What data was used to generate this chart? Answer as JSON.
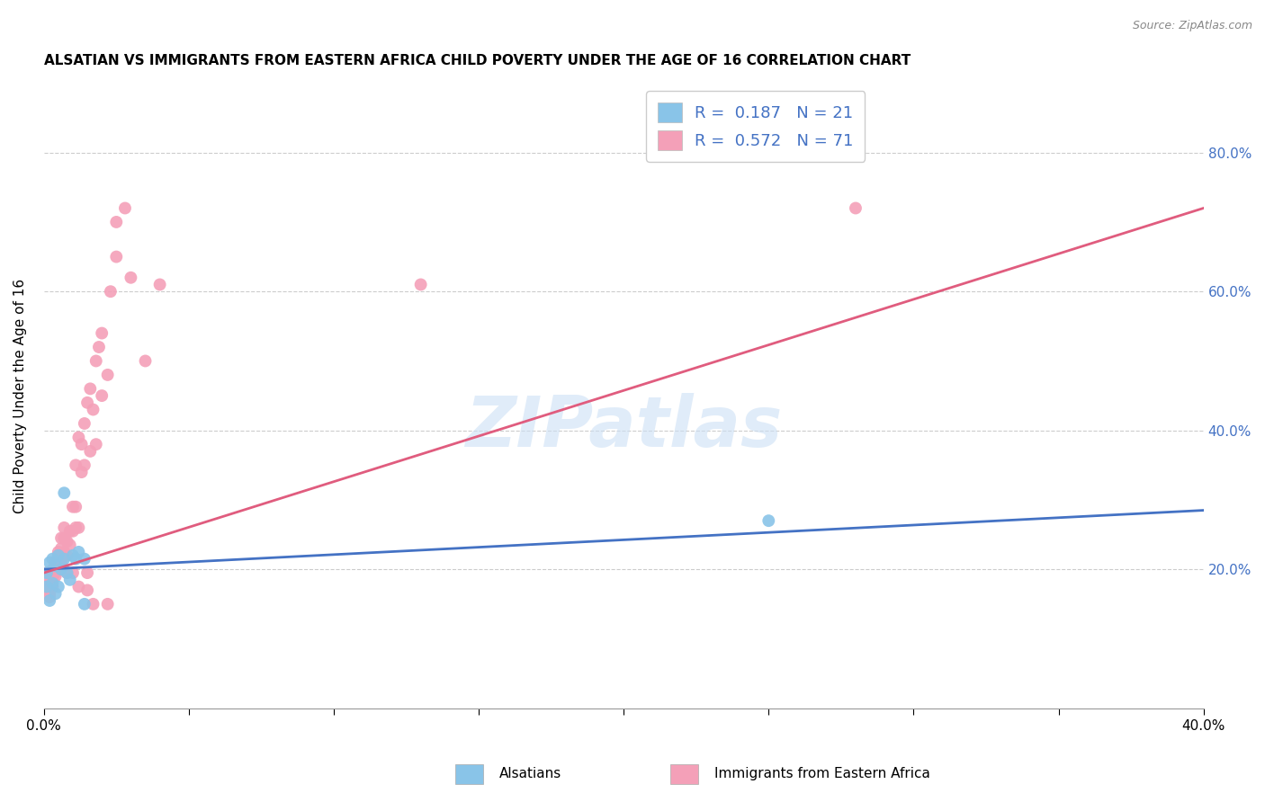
{
  "title": "ALSATIAN VS IMMIGRANTS FROM EASTERN AFRICA CHILD POVERTY UNDER THE AGE OF 16 CORRELATION CHART",
  "source": "Source: ZipAtlas.com",
  "xlabel_alsatians": "Alsatians",
  "xlabel_immigrants": "Immigrants from Eastern Africa",
  "ylabel": "Child Poverty Under the Age of 16",
  "xlim": [
    0.0,
    0.4
  ],
  "ylim": [
    0.0,
    0.9
  ],
  "legend_r1": "0.187",
  "legend_n1": "21",
  "legend_r2": "0.572",
  "legend_n2": "71",
  "blue_color": "#89c4e8",
  "pink_color": "#f4a0b8",
  "blue_line_color": "#4472c4",
  "pink_line_color": "#e05c7e",
  "watermark": "ZIPatlas",
  "alsatians_x": [
    0.001,
    0.001,
    0.002,
    0.002,
    0.003,
    0.003,
    0.004,
    0.004,
    0.005,
    0.005,
    0.006,
    0.007,
    0.008,
    0.009,
    0.01,
    0.011,
    0.012,
    0.014,
    0.014,
    0.007,
    0.25
  ],
  "alsatians_y": [
    0.175,
    0.195,
    0.155,
    0.21,
    0.18,
    0.215,
    0.165,
    0.205,
    0.22,
    0.175,
    0.2,
    0.215,
    0.195,
    0.185,
    0.22,
    0.215,
    0.225,
    0.215,
    0.15,
    0.31,
    0.27
  ],
  "immigrants_x": [
    0.001,
    0.001,
    0.001,
    0.002,
    0.002,
    0.002,
    0.002,
    0.002,
    0.003,
    0.003,
    0.003,
    0.003,
    0.003,
    0.004,
    0.004,
    0.004,
    0.004,
    0.005,
    0.005,
    0.005,
    0.005,
    0.005,
    0.006,
    0.006,
    0.006,
    0.006,
    0.006,
    0.007,
    0.007,
    0.007,
    0.008,
    0.008,
    0.008,
    0.009,
    0.009,
    0.01,
    0.01,
    0.01,
    0.011,
    0.011,
    0.011,
    0.012,
    0.012,
    0.012,
    0.013,
    0.013,
    0.014,
    0.014,
    0.015,
    0.015,
    0.015,
    0.016,
    0.016,
    0.017,
    0.017,
    0.018,
    0.018,
    0.019,
    0.02,
    0.02,
    0.022,
    0.022,
    0.023,
    0.025,
    0.025,
    0.028,
    0.03,
    0.035,
    0.04,
    0.13,
    0.28
  ],
  "immigrants_y": [
    0.185,
    0.175,
    0.195,
    0.18,
    0.17,
    0.16,
    0.165,
    0.175,
    0.19,
    0.195,
    0.175,
    0.185,
    0.2,
    0.195,
    0.205,
    0.19,
    0.21,
    0.215,
    0.22,
    0.215,
    0.225,
    0.2,
    0.21,
    0.2,
    0.23,
    0.245,
    0.215,
    0.225,
    0.245,
    0.26,
    0.24,
    0.195,
    0.22,
    0.255,
    0.235,
    0.195,
    0.255,
    0.29,
    0.29,
    0.26,
    0.35,
    0.26,
    0.39,
    0.175,
    0.38,
    0.34,
    0.41,
    0.35,
    0.195,
    0.44,
    0.17,
    0.37,
    0.46,
    0.43,
    0.15,
    0.5,
    0.38,
    0.52,
    0.45,
    0.54,
    0.48,
    0.15,
    0.6,
    0.65,
    0.7,
    0.72,
    0.62,
    0.5,
    0.61,
    0.61,
    0.72
  ]
}
